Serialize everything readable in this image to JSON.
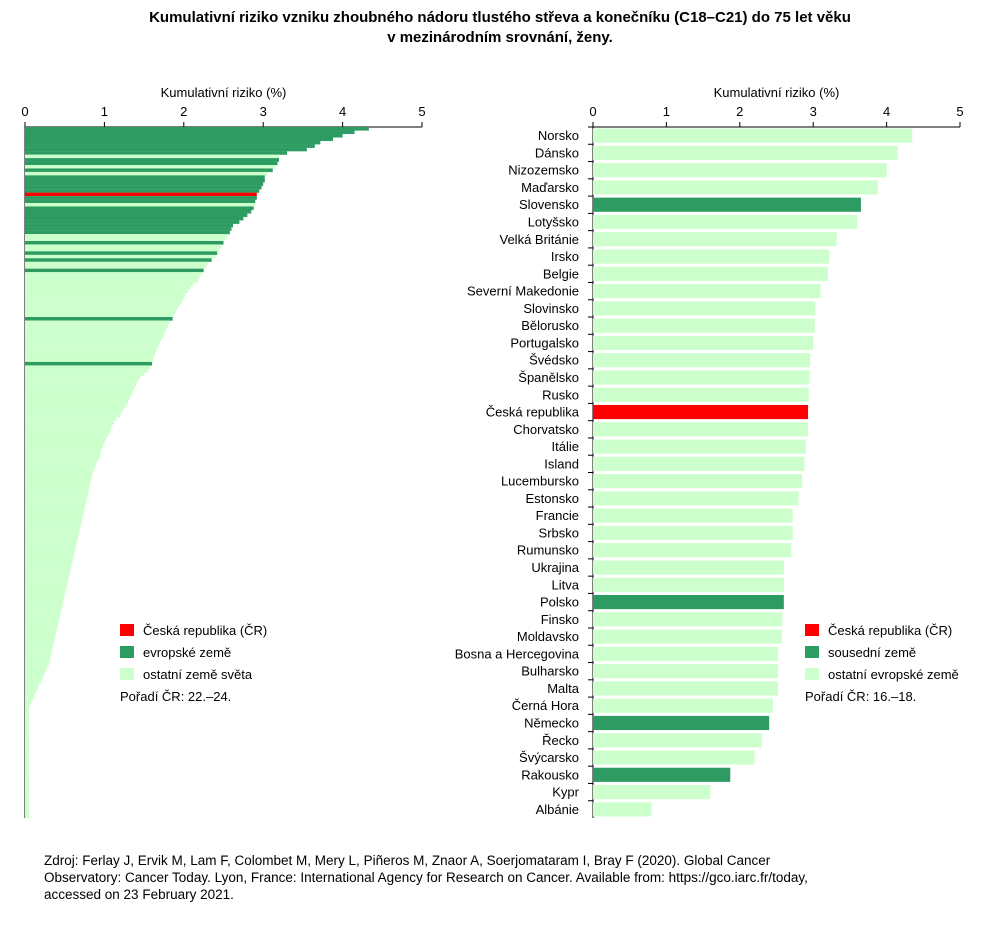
{
  "title": {
    "line1": "Kumulativní riziko vzniku zhoubného nádoru tlustého střeva a konečníku (C18–C21) do 75 let věku",
    "line2": "v mezinárodním srovnání, ženy."
  },
  "colors": {
    "cr": "#ff0000",
    "highlight": "#2e9b63",
    "other": "#ccffcc"
  },
  "source": {
    "line1": "Zdroj: Ferlay J, Ervik M, Lam F, Colombet M, Mery L, Piñeros M, Znaor A, Soerjomataram I, Bray F (2020). Global Cancer",
    "line2": "Observatory: Cancer Today. Lyon, France: International Agency for Research on Cancer. Available from: https://gco.iarc.fr/today,",
    "line3": "accessed on 23 February 2021."
  },
  "chart_data": [
    {
      "type": "bar",
      "orientation": "horizontal",
      "xlabel": "Kumulativní riziko (%)",
      "xlim": [
        0,
        5
      ],
      "ticks": [
        "0",
        "1",
        "2",
        "3",
        "4",
        "5"
      ],
      "legend": [
        {
          "label": "Česká republika (ČR)",
          "group": "cr"
        },
        {
          "label": "evropské země",
          "group": "highlight"
        },
        {
          "label": "ostatní země světa",
          "group": "other"
        }
      ],
      "note": "Pořadí ČR: 22.–24.",
      "groups": [
        "highlight",
        "highlight",
        "highlight",
        "highlight",
        "highlight",
        "highlight",
        "highlight",
        "highlight",
        "other",
        "highlight",
        "highlight",
        "other",
        "highlight",
        "other",
        "highlight",
        "highlight",
        "highlight",
        "highlight",
        "highlight",
        "cr",
        "highlight",
        "highlight",
        "other",
        "highlight",
        "highlight",
        "highlight",
        "highlight",
        "highlight",
        "highlight",
        "highlight",
        "highlight",
        "other",
        "other",
        "highlight",
        "other",
        "other",
        "highlight",
        "other",
        "highlight",
        "other",
        "other",
        "highlight",
        "other",
        "other",
        "other",
        "other",
        "other",
        "other",
        "other",
        "other",
        "other",
        "other",
        "other",
        "other",
        "other",
        "highlight",
        "other",
        "other",
        "other",
        "other",
        "other",
        "other",
        "other",
        "other",
        "other",
        "other",
        "other",
        "other",
        "highlight",
        "other",
        "other",
        "other",
        "other",
        "other",
        "other",
        "other",
        "other",
        "other",
        "other",
        "other",
        "other",
        "other",
        "other",
        "other",
        "other",
        "other",
        "other",
        "other",
        "other",
        "other",
        "other",
        "other",
        "other",
        "other",
        "other",
        "other",
        "other",
        "other",
        "other",
        "other",
        "other",
        "other",
        "other",
        "other",
        "other",
        "other",
        "other",
        "other",
        "other",
        "other",
        "other",
        "other",
        "other",
        "other",
        "other",
        "other",
        "other",
        "other",
        "other",
        "other",
        "other",
        "other",
        "other",
        "other",
        "other",
        "other",
        "other",
        "other",
        "other",
        "other",
        "other",
        "other",
        "other",
        "other",
        "other",
        "other",
        "other",
        "other",
        "other",
        "other",
        "other",
        "other",
        "other",
        "other",
        "other",
        "other",
        "other",
        "other",
        "other",
        "other",
        "other",
        "other",
        "other",
        "other",
        "other",
        "other",
        "other",
        "other",
        "other",
        "other",
        "other",
        "other",
        "other",
        "other",
        "other",
        "other",
        "other",
        "other",
        "other",
        "other",
        "other",
        "other",
        "other",
        "other",
        "other",
        "other",
        "other",
        "other",
        "other",
        "other",
        "other",
        "other",
        "other",
        "other",
        "other",
        "other",
        "other",
        "other",
        "other",
        "other",
        "other",
        "other",
        "other",
        "other",
        "other",
        "other",
        "other",
        "other",
        "other",
        "other",
        "other",
        "other"
      ],
      "values": [
        4.33,
        4.15,
        4.0,
        3.88,
        3.72,
        3.65,
        3.55,
        3.3,
        3.2,
        3.2,
        3.18,
        3.15,
        3.12,
        3.05,
        3.02,
        3.02,
        3.0,
        2.98,
        2.95,
        2.92,
        2.92,
        2.9,
        2.9,
        2.88,
        2.85,
        2.8,
        2.75,
        2.7,
        2.62,
        2.6,
        2.58,
        2.55,
        2.52,
        2.5,
        2.48,
        2.45,
        2.42,
        2.4,
        2.35,
        2.3,
        2.28,
        2.25,
        2.22,
        2.2,
        2.18,
        2.12,
        2.08,
        2.05,
        2.02,
        2.0,
        1.98,
        1.95,
        1.92,
        1.9,
        1.88,
        1.86,
        1.82,
        1.8,
        1.78,
        1.76,
        1.74,
        1.72,
        1.7,
        1.68,
        1.66,
        1.64,
        1.62,
        1.61,
        1.6,
        1.58,
        1.55,
        1.5,
        1.45,
        1.42,
        1.4,
        1.38,
        1.36,
        1.34,
        1.32,
        1.3,
        1.28,
        1.25,
        1.22,
        1.2,
        1.15,
        1.12,
        1.1,
        1.08,
        1.06,
        1.04,
        1.02,
        1.0,
        0.98,
        0.96,
        0.95,
        0.94,
        0.92,
        0.9,
        0.88,
        0.86,
        0.85,
        0.84,
        0.83,
        0.82,
        0.81,
        0.8,
        0.79,
        0.78,
        0.77,
        0.76,
        0.75,
        0.74,
        0.73,
        0.72,
        0.71,
        0.7,
        0.69,
        0.68,
        0.67,
        0.66,
        0.65,
        0.64,
        0.63,
        0.62,
        0.61,
        0.6,
        0.59,
        0.58,
        0.57,
        0.56,
        0.55,
        0.54,
        0.53,
        0.52,
        0.51,
        0.5,
        0.49,
        0.48,
        0.47,
        0.46,
        0.45,
        0.44,
        0.43,
        0.42,
        0.41,
        0.4,
        0.39,
        0.38,
        0.37,
        0.36,
        0.35,
        0.34,
        0.33,
        0.32,
        0.31,
        0.3,
        0.28,
        0.26,
        0.24,
        0.22,
        0.2,
        0.18,
        0.16,
        0.14,
        0.12,
        0.1,
        0.08,
        0.06,
        0.05,
        0.05,
        0.05,
        0.05,
        0.05,
        0.05,
        0.05,
        0.05,
        0.05,
        0.05,
        0.05,
        0.05,
        0.05,
        0.05,
        0.05,
        0.05,
        0.05,
        0.05,
        0.05,
        0.05,
        0.05,
        0.05,
        0.05,
        0.05,
        0.05,
        0.05,
        0.05,
        0.05,
        0.05,
        0.05,
        0.05,
        0.05
      ]
    },
    {
      "type": "bar",
      "orientation": "horizontal",
      "xlabel": "Kumulativní riziko (%)",
      "xlim": [
        0,
        5
      ],
      "ticks": [
        "0",
        "1",
        "2",
        "3",
        "4",
        "5"
      ],
      "legend": [
        {
          "label": "Česká republika (ČR)",
          "group": "cr"
        },
        {
          "label": "sousední země",
          "group": "highlight"
        },
        {
          "label": "ostatní evropské země",
          "group": "other"
        }
      ],
      "note": "Pořadí ČR: 16.–18.",
      "categories": [
        "Norsko",
        "Dánsko",
        "Nizozemsko",
        "Maďarsko",
        "Slovensko",
        "Lotyšsko",
        "Velká Británie",
        "Irsko",
        "Belgie",
        "Severní Makedonie",
        "Slovinsko",
        "Bělorusko",
        "Portugalsko",
        "Švédsko",
        "Španělsko",
        "Rusko",
        "Česká republika",
        "Chorvatsko",
        "Itálie",
        "Island",
        "Lucembursko",
        "Estonsko",
        "Francie",
        "Srbsko",
        "Rumunsko",
        "Ukrajina",
        "Litva",
        "Polsko",
        "Finsko",
        "Moldavsko",
        "Bosna a Hercegovina",
        "Bulharsko",
        "Malta",
        "Černá Hora",
        "Německo",
        "Řecko",
        "Švýcarsko",
        "Rakousko",
        "Kypr",
        "Albánie"
      ],
      "groups": [
        "other",
        "other",
        "other",
        "other",
        "highlight",
        "other",
        "other",
        "other",
        "other",
        "other",
        "other",
        "other",
        "other",
        "other",
        "other",
        "other",
        "cr",
        "other",
        "other",
        "other",
        "other",
        "other",
        "other",
        "other",
        "other",
        "other",
        "other",
        "highlight",
        "other",
        "other",
        "other",
        "other",
        "other",
        "other",
        "highlight",
        "other",
        "other",
        "highlight",
        "other",
        "other"
      ],
      "values": [
        4.35,
        4.15,
        4.0,
        3.88,
        3.65,
        3.6,
        3.32,
        3.22,
        3.2,
        3.1,
        3.03,
        3.02,
        3.0,
        2.96,
        2.95,
        2.94,
        2.93,
        2.93,
        2.9,
        2.88,
        2.85,
        2.8,
        2.72,
        2.72,
        2.7,
        2.6,
        2.6,
        2.6,
        2.58,
        2.57,
        2.52,
        2.52,
        2.52,
        2.45,
        2.4,
        2.3,
        2.2,
        1.87,
        1.6,
        0.8
      ]
    }
  ]
}
